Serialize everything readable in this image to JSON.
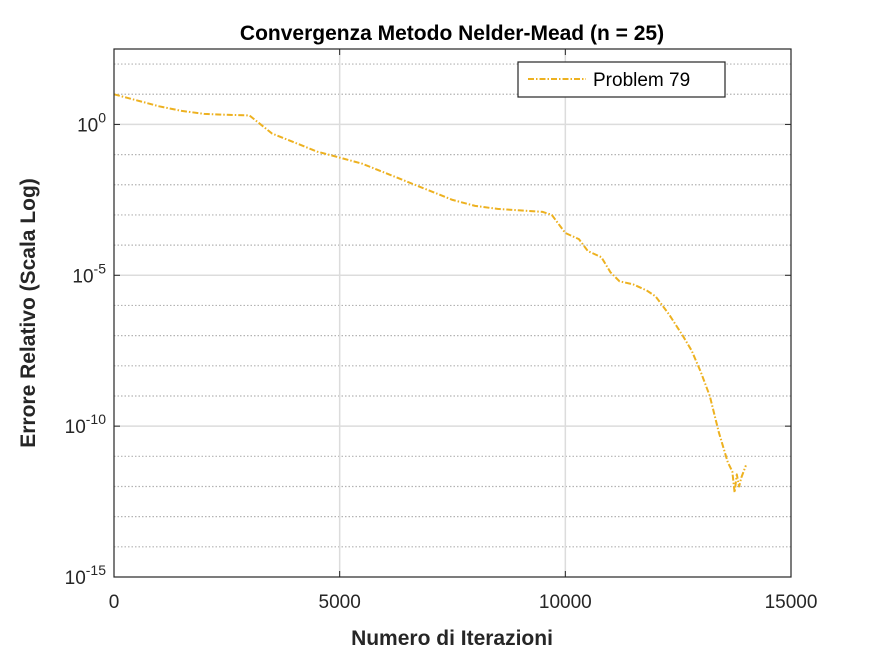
{
  "chart_data": {
    "type": "line",
    "title": "Convergenza Metodo Nelder-Mead (n = 25)",
    "xlabel": "Numero di Iterazioni",
    "ylabel": "Errore Relativo (Scala Log)",
    "xlim": [
      0,
      15000
    ],
    "ylim_log10": [
      -15,
      2.5
    ],
    "yscale": "log",
    "grid": true,
    "minor_grid": true,
    "legend_position": "top-right",
    "x_ticks": [
      0,
      5000,
      10000,
      15000
    ],
    "x_tick_labels": [
      "0",
      "5000",
      "10000",
      "15000"
    ],
    "y_tick_exponents": [
      0,
      -5,
      -10,
      -15
    ],
    "y_tick_base": "10",
    "color": "#EDB120",
    "series": [
      {
        "name": "Problem 79",
        "x": [
          0,
          500,
          1000,
          1500,
          2000,
          2500,
          3000,
          3500,
          4000,
          4500,
          5000,
          5500,
          6000,
          6500,
          7000,
          7500,
          8000,
          8500,
          9000,
          9500,
          9700,
          10000,
          10300,
          10500,
          10800,
          11000,
          11200,
          11500,
          11800,
          12000,
          12300,
          12600,
          12800,
          13000,
          13200,
          13300,
          13400,
          13500,
          13600,
          13700,
          13750,
          13800,
          13850,
          13900,
          14000
        ],
        "y_log10": [
          1.0,
          0.8,
          0.6,
          0.45,
          0.35,
          0.32,
          0.3,
          -0.3,
          -0.6,
          -0.9,
          -1.1,
          -1.3,
          -1.6,
          -1.9,
          -2.2,
          -2.5,
          -2.7,
          -2.8,
          -2.85,
          -2.9,
          -3.0,
          -3.6,
          -3.8,
          -4.2,
          -4.4,
          -4.9,
          -5.2,
          -5.3,
          -5.5,
          -5.7,
          -6.3,
          -7.0,
          -7.5,
          -8.2,
          -9.0,
          -9.6,
          -10.2,
          -10.7,
          -11.2,
          -11.5,
          -12.2,
          -11.6,
          -12.0,
          -11.7,
          -11.3
        ]
      }
    ]
  }
}
